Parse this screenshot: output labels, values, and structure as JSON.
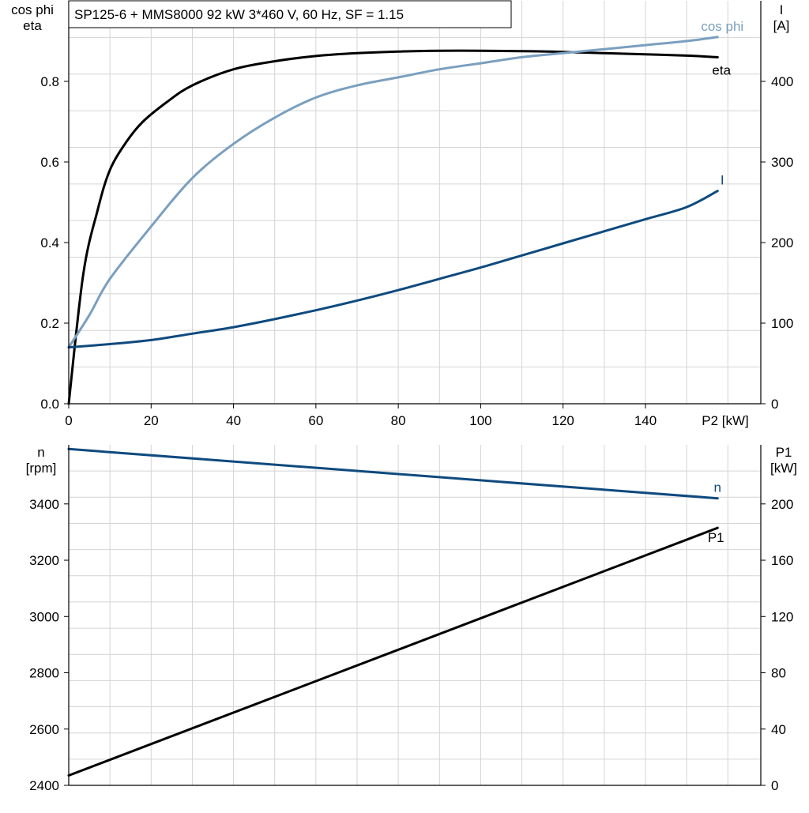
{
  "title": "SP125-6 + MMS8000   92 kW   3*460 V, 60 Hz, SF = 1.15",
  "colors": {
    "eta": "#000000",
    "cos_phi": "#7a9fbf",
    "current": "#0e4a7e",
    "speed": "#0e4a7e",
    "p1": "#000000",
    "grid": "#d4d4d4",
    "axis": "#000000"
  },
  "chart_data": [
    {
      "type": "line",
      "id": "efficiency-powerfactor-current",
      "title": "SP125-6 + MMS8000   92 kW   3*460 V, 60 Hz, SF = 1.15",
      "xlabel": "P2 [kW]",
      "xlim": [
        0,
        168
      ],
      "xticks": [
        0,
        20,
        40,
        60,
        80,
        100,
        120,
        140
      ],
      "ylabel_left": [
        "cos phi",
        "eta"
      ],
      "ylim_left": [
        0,
        1.0
      ],
      "yticks_left": [
        0.0,
        0.2,
        0.4,
        0.6,
        0.8
      ],
      "ylabel_right": [
        "I",
        "[A]"
      ],
      "ylim_right": [
        0,
        500
      ],
      "yticks_right": [
        0,
        100,
        200,
        300,
        400
      ],
      "grid": true,
      "series": [
        {
          "name": "eta",
          "axis": "left",
          "color": "#000000",
          "x": [
            0,
            3.5,
            7,
            10,
            14,
            18,
            24,
            30,
            40,
            50,
            60,
            70,
            80,
            90,
            100,
            110,
            120,
            130,
            140,
            150,
            157.5
          ],
          "y": [
            0.0,
            0.32,
            0.48,
            0.58,
            0.65,
            0.7,
            0.75,
            0.79,
            0.83,
            0.85,
            0.863,
            0.87,
            0.874,
            0.876,
            0.876,
            0.875,
            0.873,
            0.87,
            0.867,
            0.864,
            0.86
          ]
        },
        {
          "name": "cos phi",
          "axis": "left",
          "color": "#7a9fbf",
          "x": [
            0,
            5,
            10,
            20,
            30,
            40,
            50,
            60,
            70,
            80,
            90,
            100,
            110,
            120,
            130,
            140,
            150,
            157.5
          ],
          "y": [
            0.14,
            0.22,
            0.31,
            0.44,
            0.56,
            0.645,
            0.71,
            0.76,
            0.79,
            0.81,
            0.83,
            0.845,
            0.86,
            0.87,
            0.88,
            0.89,
            0.9,
            0.91
          ]
        },
        {
          "name": "I",
          "axis": "right",
          "color": "#0e4a7e",
          "x": [
            0,
            10,
            20,
            30,
            40,
            50,
            60,
            70,
            80,
            90,
            100,
            110,
            120,
            130,
            140,
            150,
            157.5
          ],
          "y": [
            70,
            74,
            79,
            87,
            95,
            105,
            116,
            128,
            141,
            155,
            169,
            184,
            199,
            214,
            229,
            244,
            264
          ]
        }
      ]
    },
    {
      "type": "line",
      "id": "speed-input-power",
      "xlim": [
        0,
        168
      ],
      "ylabel_left": [
        "n",
        "[rpm]"
      ],
      "ylim_left": [
        2400,
        3610
      ],
      "yticks_left": [
        2400,
        2600,
        2800,
        3000,
        3200,
        3400
      ],
      "ylabel_right": [
        "P1",
        "[kW]"
      ],
      "ylim_right": [
        0,
        242
      ],
      "yticks_right": [
        0,
        40,
        80,
        120,
        160,
        200
      ],
      "grid": true,
      "series": [
        {
          "name": "n",
          "axis": "left",
          "color": "#0e4a7e",
          "x": [
            0,
            157.5
          ],
          "y": [
            3595,
            3420
          ]
        },
        {
          "name": "P1",
          "axis": "right",
          "color": "#000000",
          "x": [
            0,
            157.5
          ],
          "y": [
            7,
            183
          ]
        }
      ]
    }
  ]
}
